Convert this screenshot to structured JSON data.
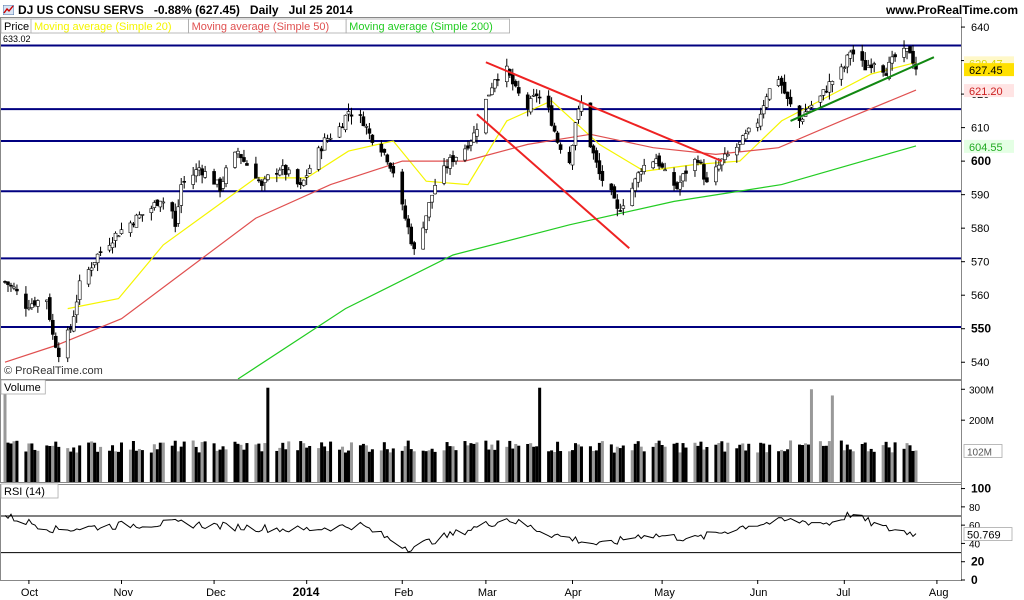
{
  "header": {
    "title": "DJ US CONSU SERVS",
    "change": "-0.88% (627.45)",
    "interval": "Daily",
    "date": "Jul 25 2014",
    "site": "www.ProRealTime.com"
  },
  "price_panel": {
    "label": "Price",
    "top_value": "633.02",
    "watermark": "© ProRealTime.com",
    "legend": [
      {
        "label": "Moving average (Simple 20)",
        "color": "#f5f500"
      },
      {
        "label": "Moving average (Simple 50)",
        "color": "#e05050"
      },
      {
        "label": "Moving average (Simple 200)",
        "color": "#22cc22"
      }
    ],
    "value_tags": [
      {
        "value": "629.47",
        "color": "#d8d800",
        "bg": "#fff8c8"
      },
      {
        "value": "627.45",
        "color": "#000000",
        "bg": "#ffe000"
      },
      {
        "value": "621.20",
        "color": "#cc2222",
        "bg": "#ffe4e4"
      },
      {
        "value": "604.55",
        "color": "#22aa22",
        "bg": "#e4ffe4"
      }
    ]
  },
  "volume_panel": {
    "label": "Volume",
    "ticks": [
      "300M",
      "200M"
    ],
    "tag": "102M"
  },
  "rsi_panel": {
    "label": "RSI (14)",
    "ticks": [
      "100",
      "80",
      "60",
      "40",
      "20",
      "0"
    ],
    "tag": "50.769"
  },
  "x_axis": {
    "labels": [
      {
        "text": "Oct",
        "bold": false
      },
      {
        "text": "Nov",
        "bold": false
      },
      {
        "text": "Dec",
        "bold": false
      },
      {
        "text": "2014",
        "bold": true
      },
      {
        "text": "Feb",
        "bold": false
      },
      {
        "text": "Mar",
        "bold": false
      },
      {
        "text": "Apr",
        "bold": false
      },
      {
        "text": "May",
        "bold": false
      },
      {
        "text": "Jun",
        "bold": false
      },
      {
        "text": "Jul",
        "bold": false
      },
      {
        "text": "Aug",
        "bold": false
      }
    ]
  },
  "chart_data": {
    "type": "candlestick",
    "title": "DJ US CONSU SERVS",
    "y_axis": {
      "range": [
        535,
        640
      ],
      "ticks": [
        {
          "value": 640,
          "text": "640",
          "bold": false
        },
        {
          "value": 630,
          "text": "630",
          "bold": false
        },
        {
          "value": 620,
          "text": "620",
          "bold": false
        },
        {
          "value": 610,
          "text": "610",
          "bold": false
        },
        {
          "value": 600,
          "text": "600",
          "bold": true
        },
        {
          "value": 590,
          "text": "590",
          "bold": false
        },
        {
          "value": 580,
          "text": "580",
          "bold": false
        },
        {
          "value": 570,
          "text": "570",
          "bold": false
        },
        {
          "value": 560,
          "text": "560",
          "bold": false
        },
        {
          "value": 550,
          "text": "550",
          "bold": true
        },
        {
          "value": 540,
          "text": "540",
          "bold": false
        }
      ]
    },
    "x_axis": {
      "start": "2013-09-23",
      "end": "2014-07-25",
      "labels": [
        "Oct",
        "Nov",
        "Dec",
        "2014",
        "Feb",
        "Mar",
        "Apr",
        "May",
        "Jun",
        "Jul",
        "Aug"
      ]
    },
    "close_path": [
      {
        "date": "2013-09-23",
        "close": 564
      },
      {
        "date": "2013-09-26",
        "close": 562
      },
      {
        "date": "2013-09-30",
        "close": 557
      },
      {
        "date": "2013-10-03",
        "close": 558
      },
      {
        "date": "2013-10-07",
        "close": 559
      },
      {
        "date": "2013-10-09",
        "close": 548
      },
      {
        "date": "2013-10-11",
        "close": 543
      },
      {
        "date": "2013-10-15",
        "close": 550
      },
      {
        "date": "2013-10-18",
        "close": 563
      },
      {
        "date": "2013-10-24",
        "close": 572
      },
      {
        "date": "2013-10-30",
        "close": 578
      },
      {
        "date": "2013-11-06",
        "close": 583
      },
      {
        "date": "2013-11-11",
        "close": 586
      },
      {
        "date": "2013-11-14",
        "close": 589
      },
      {
        "date": "2013-11-18",
        "close": 585
      },
      {
        "date": "2013-11-19",
        "close": 580
      },
      {
        "date": "2013-11-21",
        "close": 593
      },
      {
        "date": "2013-11-25",
        "close": 596
      },
      {
        "date": "2013-11-27",
        "close": 598
      },
      {
        "date": "2013-12-02",
        "close": 594
      },
      {
        "date": "2013-12-04",
        "close": 592
      },
      {
        "date": "2013-12-06",
        "close": 597
      },
      {
        "date": "2013-12-10",
        "close": 603
      },
      {
        "date": "2013-12-12",
        "close": 600
      },
      {
        "date": "2013-12-16",
        "close": 596
      },
      {
        "date": "2013-12-18",
        "close": 592
      },
      {
        "date": "2013-12-20",
        "close": 595
      },
      {
        "date": "2013-12-24",
        "close": 598
      },
      {
        "date": "2013-12-27",
        "close": 596
      },
      {
        "date": "2013-12-31",
        "close": 592
      },
      {
        "date": "2014-01-03",
        "close": 598
      },
      {
        "date": "2014-01-08",
        "close": 606
      },
      {
        "date": "2014-01-13",
        "close": 610
      },
      {
        "date": "2014-01-16",
        "close": 615
      },
      {
        "date": "2014-01-21",
        "close": 612
      },
      {
        "date": "2014-01-23",
        "close": 608
      },
      {
        "date": "2014-01-27",
        "close": 604
      },
      {
        "date": "2014-01-29",
        "close": 601
      },
      {
        "date": "2014-01-31",
        "close": 597
      },
      {
        "date": "2014-02-03",
        "close": 586
      },
      {
        "date": "2014-02-05",
        "close": 580
      },
      {
        "date": "2014-02-07",
        "close": 573
      },
      {
        "date": "2014-02-11",
        "close": 584
      },
      {
        "date": "2014-02-14",
        "close": 593
      },
      {
        "date": "2014-02-19",
        "close": 600
      },
      {
        "date": "2014-02-24",
        "close": 604
      },
      {
        "date": "2014-02-27",
        "close": 608
      },
      {
        "date": "2014-03-03",
        "close": 618
      },
      {
        "date": "2014-03-06",
        "close": 625
      },
      {
        "date": "2014-03-10",
        "close": 627
      },
      {
        "date": "2014-03-13",
        "close": 621
      },
      {
        "date": "2014-03-17",
        "close": 616
      },
      {
        "date": "2014-03-20",
        "close": 620
      },
      {
        "date": "2014-03-24",
        "close": 615
      },
      {
        "date": "2014-03-27",
        "close": 606
      },
      {
        "date": "2014-03-31",
        "close": 600
      },
      {
        "date": "2014-04-02",
        "close": 612
      },
      {
        "date": "2014-04-04",
        "close": 617
      },
      {
        "date": "2014-04-07",
        "close": 605
      },
      {
        "date": "2014-04-10",
        "close": 596
      },
      {
        "date": "2014-04-14",
        "close": 590
      },
      {
        "date": "2014-04-16",
        "close": 585
      },
      {
        "date": "2014-04-21",
        "close": 592
      },
      {
        "date": "2014-04-24",
        "close": 598
      },
      {
        "date": "2014-04-29",
        "close": 601
      },
      {
        "date": "2014-05-02",
        "close": 596
      },
      {
        "date": "2014-05-06",
        "close": 592
      },
      {
        "date": "2014-05-09",
        "close": 597
      },
      {
        "date": "2014-05-13",
        "close": 601
      },
      {
        "date": "2014-05-16",
        "close": 593
      },
      {
        "date": "2014-05-21",
        "close": 600
      },
      {
        "date": "2014-05-27",
        "close": 605
      },
      {
        "date": "2014-06-02",
        "close": 612
      },
      {
        "date": "2014-06-05",
        "close": 620
      },
      {
        "date": "2014-06-09",
        "close": 625
      },
      {
        "date": "2014-06-12",
        "close": 618
      },
      {
        "date": "2014-06-16",
        "close": 612
      },
      {
        "date": "2014-06-19",
        "close": 616
      },
      {
        "date": "2014-06-23",
        "close": 619
      },
      {
        "date": "2014-06-26",
        "close": 623
      },
      {
        "date": "2014-07-01",
        "close": 628
      },
      {
        "date": "2014-07-03",
        "close": 633
      },
      {
        "date": "2014-07-08",
        "close": 628
      },
      {
        "date": "2014-07-11",
        "close": 630
      },
      {
        "date": "2014-07-15",
        "close": 627
      },
      {
        "date": "2014-07-18",
        "close": 631
      },
      {
        "date": "2014-07-23",
        "close": 633
      },
      {
        "date": "2014-07-25",
        "close": 627.45
      }
    ],
    "horizontal_levels": [
      634.5,
      615.5,
      606,
      591,
      571,
      550.5
    ],
    "trendlines": [
      {
        "color": "#ee2222",
        "from": {
          "date": "2014-03-03",
          "value": 629.5
        },
        "to": {
          "date": "2014-05-21",
          "value": 600
        }
      },
      {
        "color": "#ee2222",
        "from": {
          "date": "2014-02-28",
          "value": 614
        },
        "to": {
          "date": "2014-04-20",
          "value": 574
        }
      },
      {
        "color": "#118811",
        "from": {
          "date": "2014-06-13",
          "value": 612
        },
        "to": {
          "date": "2014-07-31",
          "value": 631
        }
      }
    ],
    "moving_averages": [
      {
        "name": "Moving average (Simple 20)",
        "color": "#f5f500",
        "points": [
          {
            "date": "2013-10-14",
            "value": 556
          },
          {
            "date": "2013-10-31",
            "value": 559
          },
          {
            "date": "2013-11-15",
            "value": 575
          },
          {
            "date": "2013-12-02",
            "value": 586
          },
          {
            "date": "2013-12-16",
            "value": 595
          },
          {
            "date": "2014-01-02",
            "value": 595
          },
          {
            "date": "2014-01-16",
            "value": 603
          },
          {
            "date": "2014-01-31",
            "value": 606
          },
          {
            "date": "2014-02-11",
            "value": 594
          },
          {
            "date": "2014-02-25",
            "value": 593
          },
          {
            "date": "2014-03-10",
            "value": 612
          },
          {
            "date": "2014-03-25",
            "value": 618
          },
          {
            "date": "2014-04-10",
            "value": 605
          },
          {
            "date": "2014-04-25",
            "value": 597
          },
          {
            "date": "2014-05-12",
            "value": 599
          },
          {
            "date": "2014-05-27",
            "value": 600
          },
          {
            "date": "2014-06-10",
            "value": 612
          },
          {
            "date": "2014-06-25",
            "value": 619
          },
          {
            "date": "2014-07-10",
            "value": 626
          },
          {
            "date": "2014-07-25",
            "value": 629.47
          }
        ]
      },
      {
        "name": "Moving average (Simple 50)",
        "color": "#e05050",
        "points": [
          {
            "date": "2013-09-23",
            "value": 540
          },
          {
            "date": "2013-10-10",
            "value": 545
          },
          {
            "date": "2013-11-01",
            "value": 553
          },
          {
            "date": "2013-11-25",
            "value": 569
          },
          {
            "date": "2013-12-16",
            "value": 583
          },
          {
            "date": "2014-01-10",
            "value": 593
          },
          {
            "date": "2014-02-03",
            "value": 600
          },
          {
            "date": "2014-02-24",
            "value": 600
          },
          {
            "date": "2014-03-17",
            "value": 605
          },
          {
            "date": "2014-04-07",
            "value": 608
          },
          {
            "date": "2014-04-28",
            "value": 604
          },
          {
            "date": "2014-05-19",
            "value": 602
          },
          {
            "date": "2014-06-09",
            "value": 604
          },
          {
            "date": "2014-06-30",
            "value": 612
          },
          {
            "date": "2014-07-25",
            "value": 621.2
          }
        ]
      },
      {
        "name": "Moving average (Simple 200)",
        "color": "#22cc22",
        "points": [
          {
            "date": "2013-12-10",
            "value": 535
          },
          {
            "date": "2014-01-15",
            "value": 556
          },
          {
            "date": "2014-02-20",
            "value": 572
          },
          {
            "date": "2014-03-31",
            "value": 581
          },
          {
            "date": "2014-05-05",
            "value": 588
          },
          {
            "date": "2014-06-10",
            "value": 593
          },
          {
            "date": "2014-07-25",
            "value": 604.55
          }
        ]
      }
    ],
    "volume": {
      "unit": "M",
      "range": [
        0,
        330
      ],
      "spikes": [
        {
          "date": "2013-09-23",
          "value": 290
        },
        {
          "date": "2013-12-20",
          "value": 305
        },
        {
          "date": "2014-03-21",
          "value": 305
        },
        {
          "date": "2014-06-20",
          "value": 300
        },
        {
          "date": "2014-06-27",
          "value": 280
        }
      ],
      "typical_range": [
        95,
        135
      ],
      "last": 102
    },
    "rsi": {
      "range": [
        0,
        100
      ],
      "levels": [
        70,
        30
      ],
      "points": [
        {
          "date": "2013-09-23",
          "value": 70
        },
        {
          "date": "2013-10-10",
          "value": 55
        },
        {
          "date": "2013-11-01",
          "value": 60
        },
        {
          "date": "2013-11-20",
          "value": 62
        },
        {
          "date": "2013-12-10",
          "value": 58
        },
        {
          "date": "2013-12-31",
          "value": 55
        },
        {
          "date": "2014-01-20",
          "value": 60
        },
        {
          "date": "2014-02-05",
          "value": 35
        },
        {
          "date": "2014-02-25",
          "value": 55
        },
        {
          "date": "2014-03-10",
          "value": 67
        },
        {
          "date": "2014-03-25",
          "value": 50
        },
        {
          "date": "2014-04-11",
          "value": 38
        },
        {
          "date": "2014-04-25",
          "value": 50
        },
        {
          "date": "2014-05-12",
          "value": 45
        },
        {
          "date": "2014-05-30",
          "value": 60
        },
        {
          "date": "2014-06-12",
          "value": 65
        },
        {
          "date": "2014-06-26",
          "value": 62
        },
        {
          "date": "2014-07-03",
          "value": 72
        },
        {
          "date": "2014-07-14",
          "value": 57
        },
        {
          "date": "2014-07-25",
          "value": 50.769
        }
      ]
    }
  }
}
